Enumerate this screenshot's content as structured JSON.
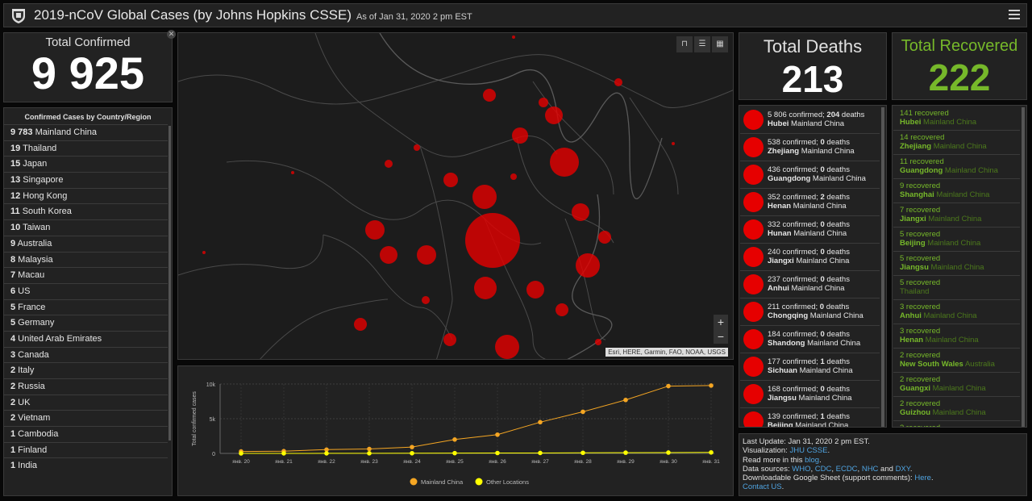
{
  "header": {
    "title": "2019-nCoV Global Cases (by Johns Hopkins CSSE)",
    "subtitle": "As of Jan 31, 2020 2 pm EST"
  },
  "total_confirmed": {
    "label": "Total Confirmed",
    "value": "9 925"
  },
  "total_deaths": {
    "label": "Total Deaths",
    "value": "213"
  },
  "total_recovered": {
    "label": "Total Recovered",
    "value": "222"
  },
  "country_list": {
    "header": "Confirmed Cases by Country/Region",
    "items": [
      {
        "count": "9 783",
        "name": "Mainland China"
      },
      {
        "count": "19",
        "name": "Thailand"
      },
      {
        "count": "15",
        "name": "Japan"
      },
      {
        "count": "13",
        "name": "Singapore"
      },
      {
        "count": "12",
        "name": "Hong Kong"
      },
      {
        "count": "11",
        "name": "South Korea"
      },
      {
        "count": "10",
        "name": "Taiwan"
      },
      {
        "count": "9",
        "name": "Australia"
      },
      {
        "count": "8",
        "name": "Malaysia"
      },
      {
        "count": "7",
        "name": "Macau"
      },
      {
        "count": "6",
        "name": "US"
      },
      {
        "count": "5",
        "name": "France"
      },
      {
        "count": "5",
        "name": "Germany"
      },
      {
        "count": "4",
        "name": "United Arab Emirates"
      },
      {
        "count": "3",
        "name": "Canada"
      },
      {
        "count": "2",
        "name": "Italy"
      },
      {
        "count": "2",
        "name": "Russia"
      },
      {
        "count": "2",
        "name": "UK"
      },
      {
        "count": "2",
        "name": "Vietnam"
      },
      {
        "count": "1",
        "name": "Cambodia"
      },
      {
        "count": "1",
        "name": "Finland"
      },
      {
        "count": "1",
        "name": "India"
      }
    ]
  },
  "deaths_list": [
    {
      "confirmed": "5 806",
      "deaths": "204",
      "province": "Hubei",
      "country": "Mainland China"
    },
    {
      "confirmed": "538",
      "deaths": "0",
      "province": "Zhejiang",
      "country": "Mainland China"
    },
    {
      "confirmed": "436",
      "deaths": "0",
      "province": "Guangdong",
      "country": "Mainland China"
    },
    {
      "confirmed": "352",
      "deaths": "2",
      "province": "Henan",
      "country": "Mainland China"
    },
    {
      "confirmed": "332",
      "deaths": "0",
      "province": "Hunan",
      "country": "Mainland China"
    },
    {
      "confirmed": "240",
      "deaths": "0",
      "province": "Jiangxi",
      "country": "Mainland China"
    },
    {
      "confirmed": "237",
      "deaths": "0",
      "province": "Anhui",
      "country": "Mainland China"
    },
    {
      "confirmed": "211",
      "deaths": "0",
      "province": "Chongqing",
      "country": "Mainland China"
    },
    {
      "confirmed": "184",
      "deaths": "0",
      "province": "Shandong",
      "country": "Mainland China"
    },
    {
      "confirmed": "177",
      "deaths": "1",
      "province": "Sichuan",
      "country": "Mainland China"
    },
    {
      "confirmed": "168",
      "deaths": "0",
      "province": "Jiangsu",
      "country": "Mainland China"
    },
    {
      "confirmed": "139",
      "deaths": "1",
      "province": "Beijing",
      "country": "Mainland China"
    }
  ],
  "death_labels": {
    "confirmed_suffix": "confirmed;",
    "deaths_suffix": "deaths"
  },
  "recovered_list": [
    {
      "count": "141",
      "province": "Hubei",
      "country": "Mainland China"
    },
    {
      "count": "14",
      "province": "Zhejiang",
      "country": "Mainland China"
    },
    {
      "count": "11",
      "province": "Guangdong",
      "country": "Mainland China"
    },
    {
      "count": "9",
      "province": "Shanghai",
      "country": "Mainland China"
    },
    {
      "count": "7",
      "province": "Jiangxi",
      "country": "Mainland China"
    },
    {
      "count": "5",
      "province": "Beijing",
      "country": "Mainland China"
    },
    {
      "count": "5",
      "province": "Jiangsu",
      "country": "Mainland China"
    },
    {
      "count": "5",
      "province": "",
      "country": "Thailand"
    },
    {
      "count": "3",
      "province": "Anhui",
      "country": "Mainland China"
    },
    {
      "count": "3",
      "province": "Henan",
      "country": "Mainland China"
    },
    {
      "count": "2",
      "province": "New South Wales",
      "country": "Australia"
    },
    {
      "count": "2",
      "province": "Guangxi",
      "country": "Mainland China"
    },
    {
      "count": "2",
      "province": "Guizhou",
      "country": "Mainland China"
    },
    {
      "count": "2",
      "province": "",
      "country": ""
    }
  ],
  "recovered_label": "recovered",
  "map": {
    "attribution": "Esri, HERE, Garmin, FAO, NOAA, USGS",
    "zoom_in": "+",
    "zoom_out": "−",
    "bubble_color": "#e60000"
  },
  "info": {
    "last_update": "Last Update: Jan 31, 2020 2 pm EST.",
    "visualization_prefix": "Visualization: ",
    "visualization_link": "JHU CSSE",
    "visualization_suffix": ".",
    "read_more_prefix": "Read more in this ",
    "read_more_link": "blog",
    "read_more_suffix": ".",
    "sources_prefix": "Data sources: ",
    "sources": [
      "WHO",
      "CDC",
      "ECDC",
      "NHC",
      "DXY"
    ],
    "sources_and": " and ",
    "sheet_prefix": "Downloadable Google Sheet (support comments): ",
    "sheet_link": "Here",
    "sheet_suffix": ".",
    "contact_link": "Contact US",
    "contact_suffix": "."
  },
  "colors": {
    "accent_green": "#76b82a",
    "bubble_red": "#e60000",
    "line_orange": "#f5a623",
    "line_yellow": "#ffff00",
    "link_blue": "#4fa3e0"
  },
  "chart_data": {
    "type": "line",
    "title": "",
    "xlabel": "",
    "ylabel": "Total confirmed cases",
    "categories": [
      "янв. 20",
      "янв. 21",
      "янв. 22",
      "янв. 23",
      "янв. 24",
      "янв. 25",
      "янв. 26",
      "янв. 27",
      "янв. 28",
      "янв. 29",
      "янв. 30",
      "янв. 31"
    ],
    "y_ticks": [
      "0",
      "5k",
      "10k"
    ],
    "ylim": [
      0,
      10000
    ],
    "series": [
      {
        "name": "Mainland China",
        "color": "#f5a623",
        "values": [
          278,
          326,
          547,
          639,
          916,
          2000,
          2700,
          4500,
          6000,
          7700,
          9700,
          9783
        ]
      },
      {
        "name": "Other Locations",
        "color": "#ffff00",
        "values": [
          4,
          6,
          8,
          14,
          25,
          40,
          57,
          64,
          87,
          105,
          118,
          142
        ]
      }
    ],
    "grid": true,
    "legend": "bottom"
  }
}
